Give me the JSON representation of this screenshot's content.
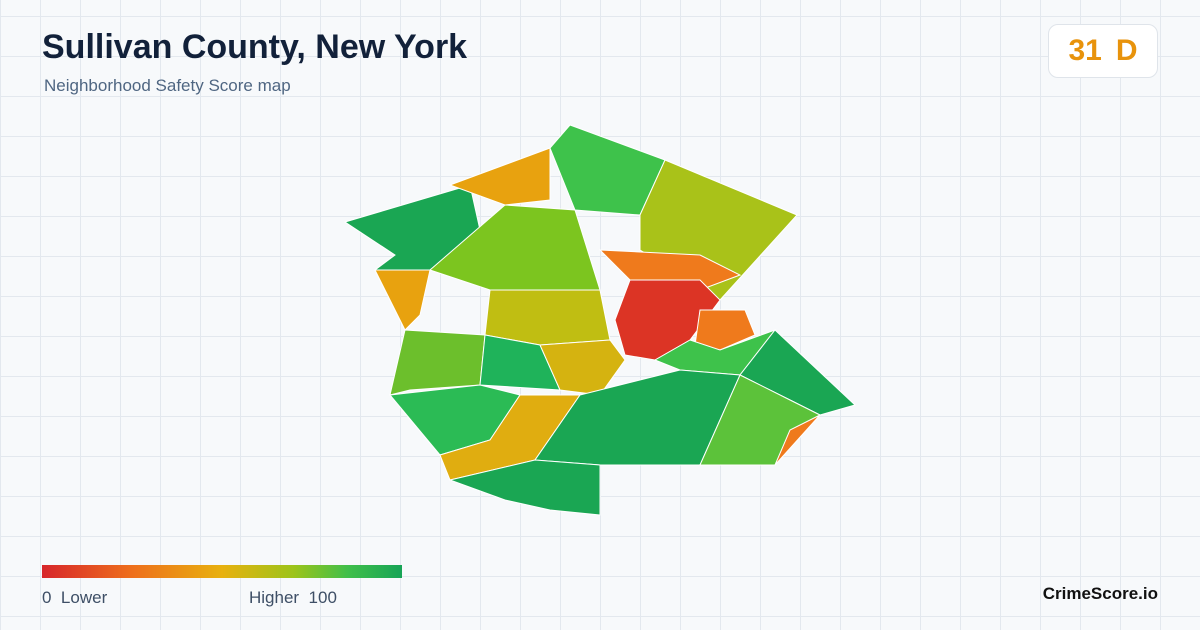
{
  "header": {
    "title": "Sullivan County, New York",
    "subtitle": "Neighborhood Safety Score map"
  },
  "score": {
    "value": "31",
    "grade": "D"
  },
  "legend": {
    "min": "0",
    "min_label": "Lower",
    "max_label": "Higher",
    "max": "100"
  },
  "brand": "CrimeScore.io"
}
